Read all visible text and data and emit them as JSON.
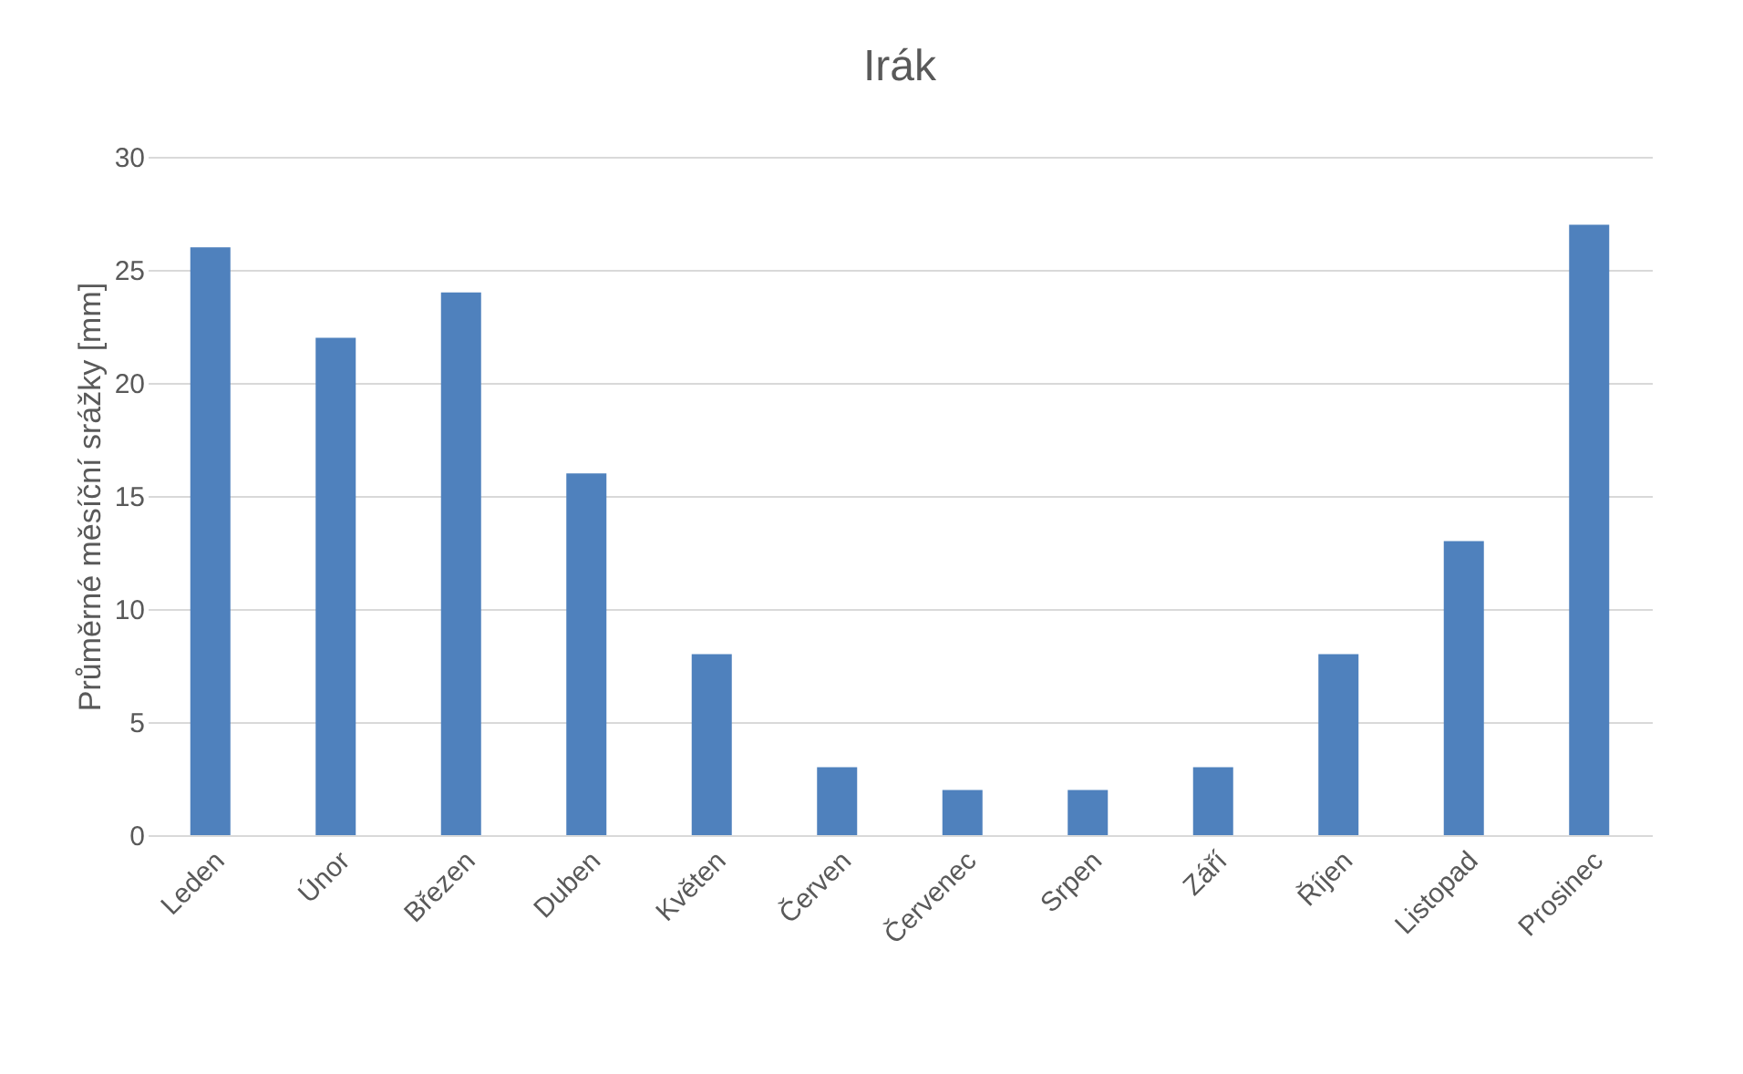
{
  "chart_data": {
    "type": "bar",
    "title": "Irák",
    "ylabel": "Průměrné měsíční srážky [mm]",
    "categories": [
      "Leden",
      "Únor",
      "Březen",
      "Duben",
      "Květen",
      "Červen",
      "Červenec",
      "Srpen",
      "Září",
      "Říjen",
      "Listopad",
      "Prosinec"
    ],
    "values": [
      26,
      22,
      24,
      16,
      8,
      3,
      2,
      2,
      3,
      8,
      13,
      27
    ],
    "color": "#4f81bd",
    "ylim": [
      0,
      30
    ],
    "yticks": [
      0,
      5,
      10,
      15,
      20,
      25,
      30
    ],
    "grid": "y"
  }
}
